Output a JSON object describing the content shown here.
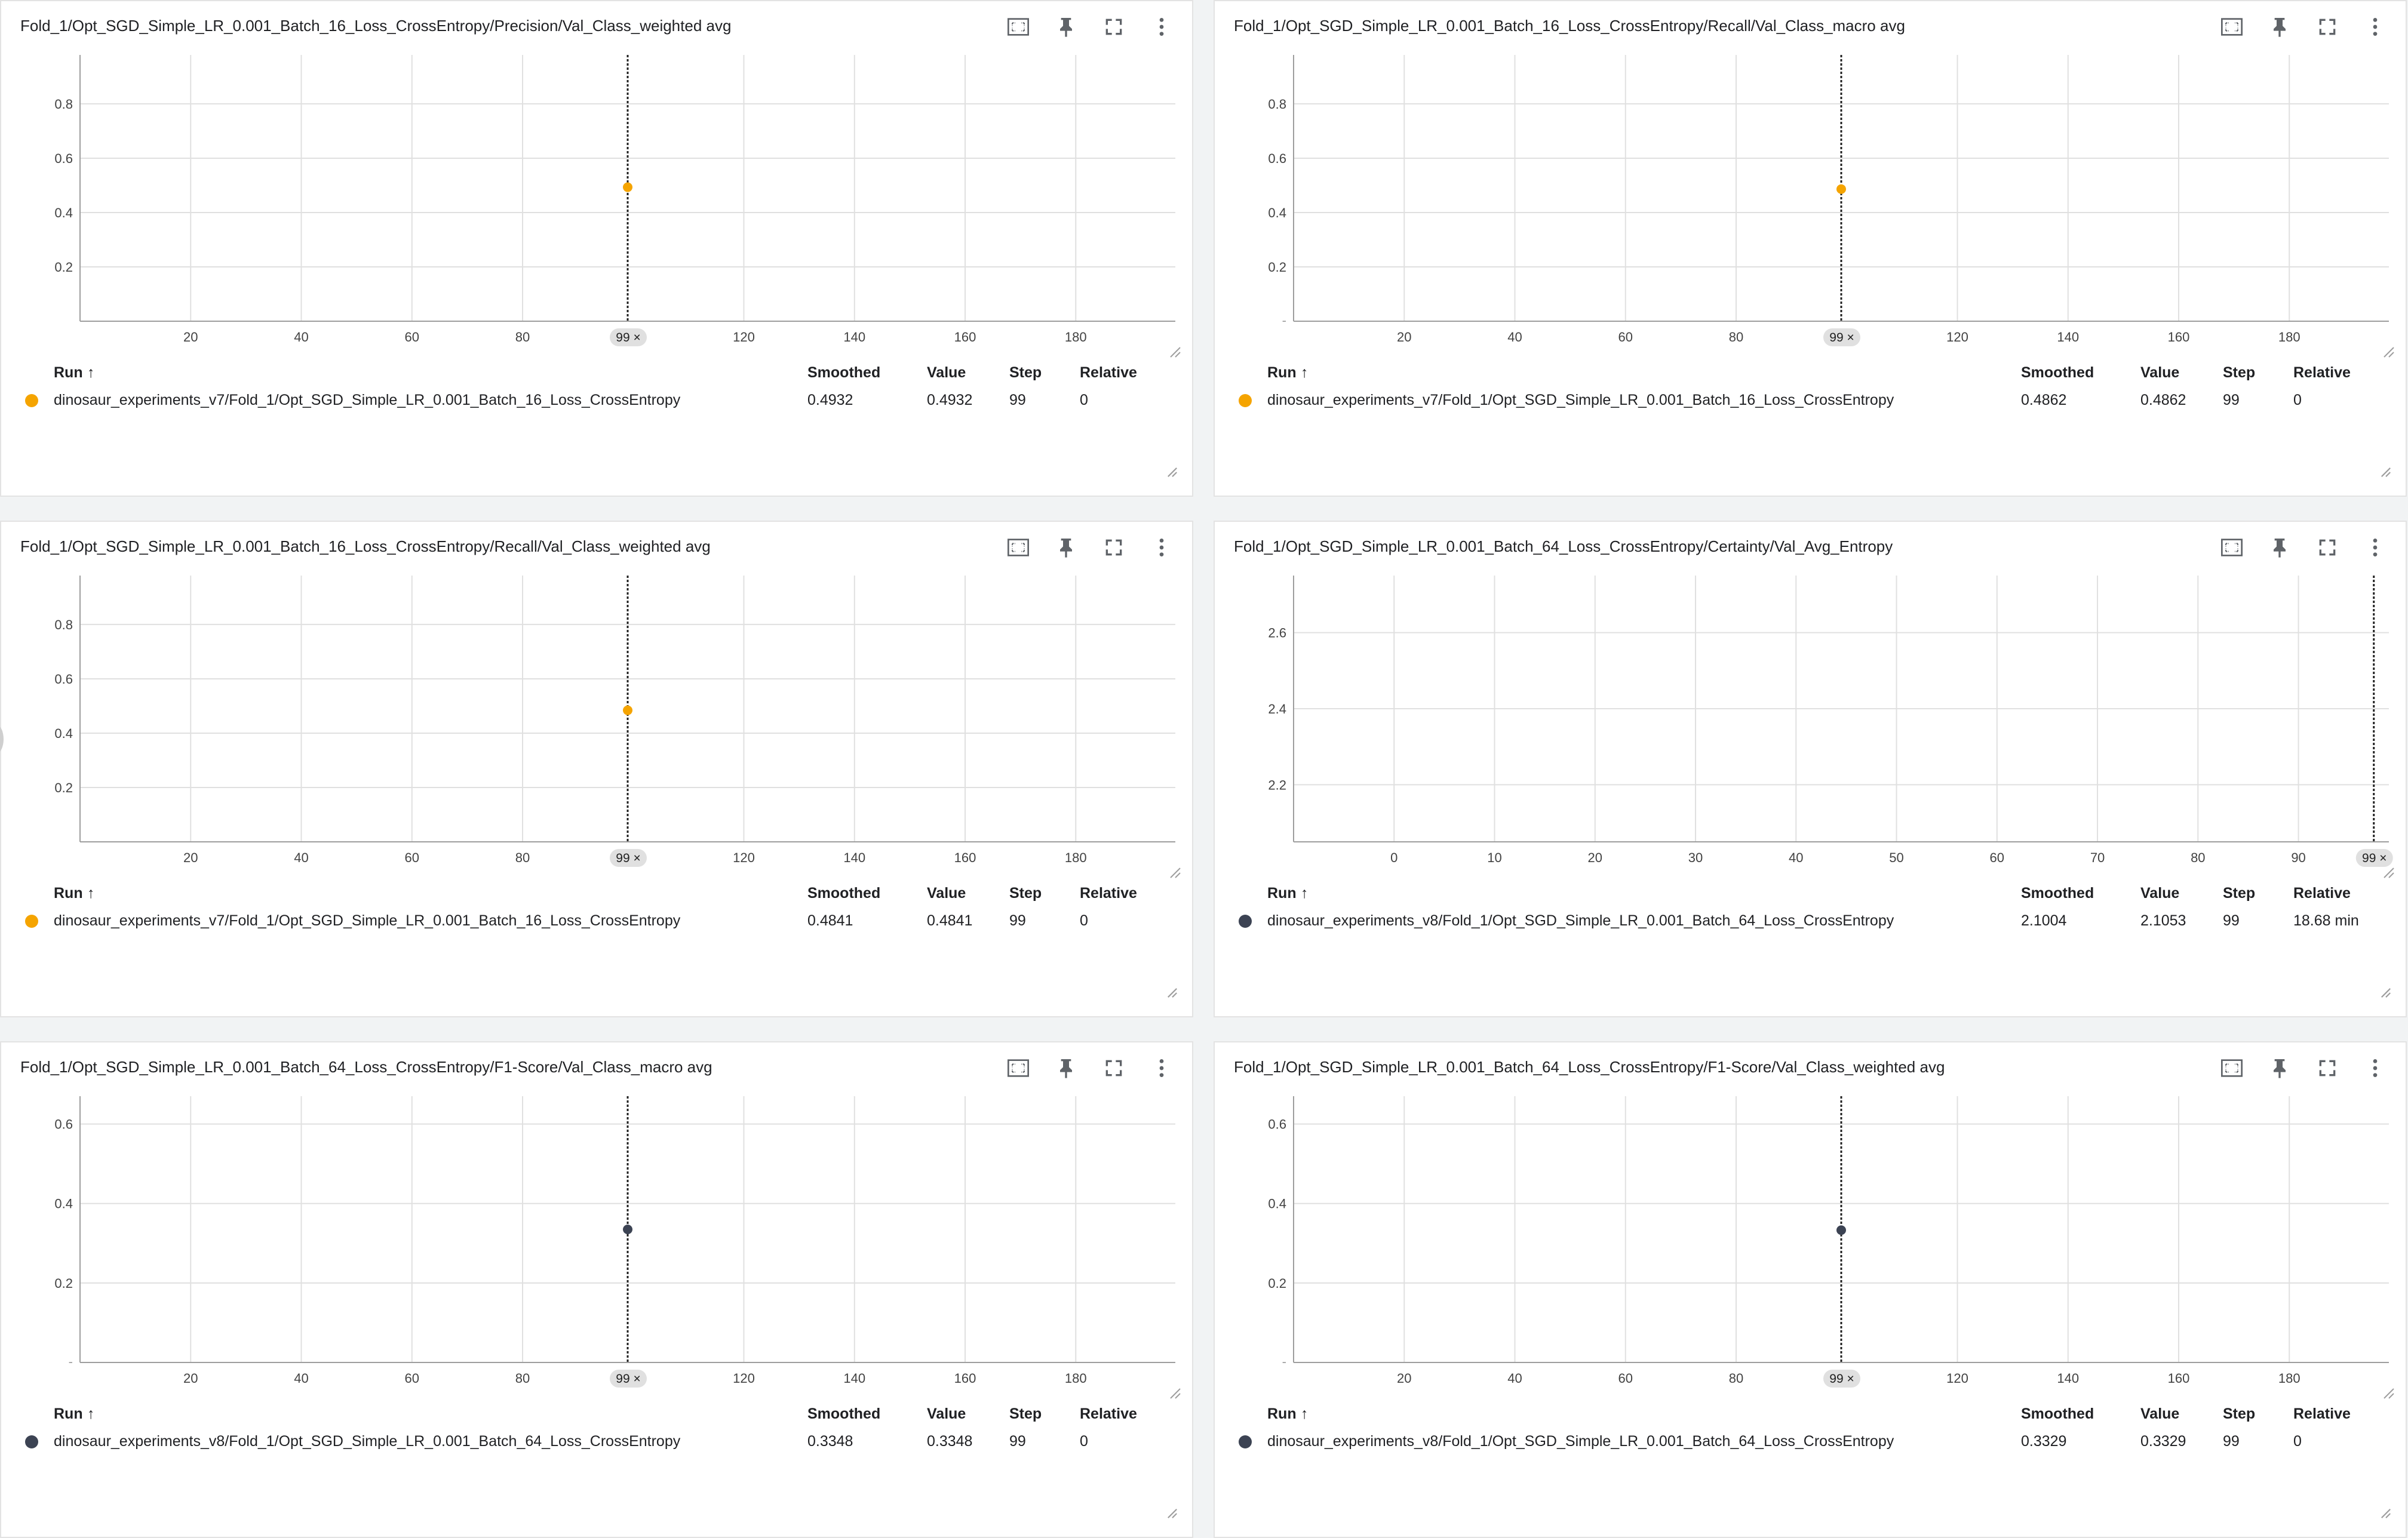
{
  "header": {
    "run_label": "Run",
    "sort_arrow": "↑",
    "smoothed_label": "Smoothed",
    "value_label": "Value",
    "step_label": "Step",
    "relative_label": "Relative"
  },
  "cards": [
    {
      "title": "Fold_1/Opt_SGD_Simple_LR_0.001_Batch_16_Loss_CrossEntropy/Precision/Val_Class_weighted avg",
      "chart_data": {
        "type": "scatter",
        "xlim": [
          0,
          198
        ],
        "ylim": [
          0.0,
          0.98
        ],
        "xticks": [
          "20",
          "40",
          "60",
          "80",
          "120",
          "140",
          "160",
          "180"
        ],
        "xtick_values": [
          20,
          40,
          60,
          80,
          120,
          140,
          160,
          180
        ],
        "yticks": [
          "0.2",
          "0.4",
          "0.6",
          "0.8"
        ],
        "ytick_values": [
          0.2,
          0.4,
          0.6,
          0.8
        ],
        "bottom_tick": "",
        "x": [
          99
        ],
        "y": [
          0.4932
        ],
        "cursor_label": "99 ×",
        "cursor_x": 99,
        "grid": true
      },
      "color": "#f5a400",
      "row": {
        "run": "dinosaur_experiments_v7/Fold_1/Opt_SGD_Simple_LR_0.001_Batch_16_Loss_CrossEntropy",
        "smoothed": "0.4932",
        "value": "0.4932",
        "step": "99",
        "relative": "0"
      }
    },
    {
      "title": "Fold_1/Opt_SGD_Simple_LR_0.001_Batch_16_Loss_CrossEntropy/Recall/Val_Class_macro avg",
      "chart_data": {
        "type": "scatter",
        "xlim": [
          0,
          198
        ],
        "ylim": [
          0.0,
          0.98
        ],
        "xticks": [
          "20",
          "40",
          "60",
          "80",
          "120",
          "140",
          "160",
          "180"
        ],
        "xtick_values": [
          20,
          40,
          60,
          80,
          120,
          140,
          160,
          180
        ],
        "yticks": [
          "0.2",
          "0.4",
          "0.6",
          "0.8"
        ],
        "ytick_values": [
          0.2,
          0.4,
          0.6,
          0.8
        ],
        "bottom_tick": "-",
        "x": [
          99
        ],
        "y": [
          0.4862
        ],
        "cursor_label": "99 ×",
        "cursor_x": 99,
        "grid": true
      },
      "color": "#f5a400",
      "row": {
        "run": "dinosaur_experiments_v7/Fold_1/Opt_SGD_Simple_LR_0.001_Batch_16_Loss_CrossEntropy",
        "smoothed": "0.4862",
        "value": "0.4862",
        "step": "99",
        "relative": "0"
      }
    },
    {
      "title": "Fold_1/Opt_SGD_Simple_LR_0.001_Batch_16_Loss_CrossEntropy/Recall/Val_Class_weighted avg",
      "chart_data": {
        "type": "scatter",
        "xlim": [
          0,
          198
        ],
        "ylim": [
          0.0,
          0.98
        ],
        "xticks": [
          "20",
          "40",
          "60",
          "80",
          "120",
          "140",
          "160",
          "180"
        ],
        "xtick_values": [
          20,
          40,
          60,
          80,
          120,
          140,
          160,
          180
        ],
        "yticks": [
          "0.2",
          "0.4",
          "0.6",
          "0.8"
        ],
        "ytick_values": [
          0.2,
          0.4,
          0.6,
          0.8
        ],
        "bottom_tick": "",
        "x": [
          99
        ],
        "y": [
          0.4841
        ],
        "cursor_label": "99 ×",
        "cursor_x": 99,
        "grid": true
      },
      "color": "#f5a400",
      "row": {
        "run": "dinosaur_experiments_v7/Fold_1/Opt_SGD_Simple_LR_0.001_Batch_16_Loss_CrossEntropy",
        "smoothed": "0.4841",
        "value": "0.4841",
        "step": "99",
        "relative": "0"
      }
    },
    {
      "title": "Fold_1/Opt_SGD_Simple_LR_0.001_Batch_64_Loss_CrossEntropy/Certainty/Val_Avg_Entropy",
      "chart_data": {
        "type": "scatter",
        "xlim": [
          -10,
          99
        ],
        "ylim": [
          2.05,
          2.75
        ],
        "xticks": [
          "0",
          "10",
          "20",
          "30",
          "40",
          "50",
          "60",
          "70",
          "80",
          "90"
        ],
        "xtick_values": [
          0,
          10,
          20,
          30,
          40,
          50,
          60,
          70,
          80,
          90
        ],
        "yticks": [
          "2.2",
          "2.4",
          "2.6"
        ],
        "ytick_values": [
          2.2,
          2.4,
          2.6
        ],
        "bottom_tick": "",
        "x": [],
        "y": [],
        "cursor_label": "99 ×",
        "cursor_x": 97.5,
        "grid": true
      },
      "color": "#3c4353",
      "row": {
        "run": "dinosaur_experiments_v8/Fold_1/Opt_SGD_Simple_LR_0.001_Batch_64_Loss_CrossEntropy",
        "smoothed": "2.1004",
        "value": "2.1053",
        "step": "99",
        "relative": "18.68 min"
      }
    },
    {
      "title": "Fold_1/Opt_SGD_Simple_LR_0.001_Batch_64_Loss_CrossEntropy/F1-Score/Val_Class_macro avg",
      "chart_data": {
        "type": "scatter",
        "xlim": [
          0,
          198
        ],
        "ylim": [
          0.0,
          0.67
        ],
        "xticks": [
          "20",
          "40",
          "60",
          "80",
          "120",
          "140",
          "160",
          "180"
        ],
        "xtick_values": [
          20,
          40,
          60,
          80,
          120,
          140,
          160,
          180
        ],
        "yticks": [
          "0.2",
          "0.4",
          "0.6"
        ],
        "ytick_values": [
          0.2,
          0.4,
          0.6
        ],
        "bottom_tick": "-",
        "x": [
          99
        ],
        "y": [
          0.3348
        ],
        "cursor_label": "99 ×",
        "cursor_x": 99,
        "grid": true
      },
      "color": "#3c4353",
      "row": {
        "run": "dinosaur_experiments_v8/Fold_1/Opt_SGD_Simple_LR_0.001_Batch_64_Loss_CrossEntropy",
        "smoothed": "0.3348",
        "value": "0.3348",
        "step": "99",
        "relative": "0"
      }
    },
    {
      "title": "Fold_1/Opt_SGD_Simple_LR_0.001_Batch_64_Loss_CrossEntropy/F1-Score/Val_Class_weighted avg",
      "chart_data": {
        "type": "scatter",
        "xlim": [
          0,
          198
        ],
        "ylim": [
          0.0,
          0.67
        ],
        "xticks": [
          "20",
          "40",
          "60",
          "80",
          "120",
          "140",
          "160",
          "180"
        ],
        "xtick_values": [
          20,
          40,
          60,
          80,
          120,
          140,
          160,
          180
        ],
        "yticks": [
          "0.2",
          "0.4",
          "0.6"
        ],
        "ytick_values": [
          0.2,
          0.4,
          0.6
        ],
        "bottom_tick": "-",
        "x": [
          99
        ],
        "y": [
          0.3329
        ],
        "cursor_label": "99 ×",
        "cursor_x": 99,
        "grid": true
      },
      "color": "#3c4353",
      "row": {
        "run": "dinosaur_experiments_v8/Fold_1/Opt_SGD_Simple_LR_0.001_Batch_64_Loss_CrossEntropy",
        "smoothed": "0.3329",
        "value": "0.3329",
        "step": "99",
        "relative": "0"
      }
    }
  ],
  "icons": [
    "fit-domain-icon",
    "pin-icon",
    "fullscreen-icon",
    "more-vert-icon"
  ]
}
